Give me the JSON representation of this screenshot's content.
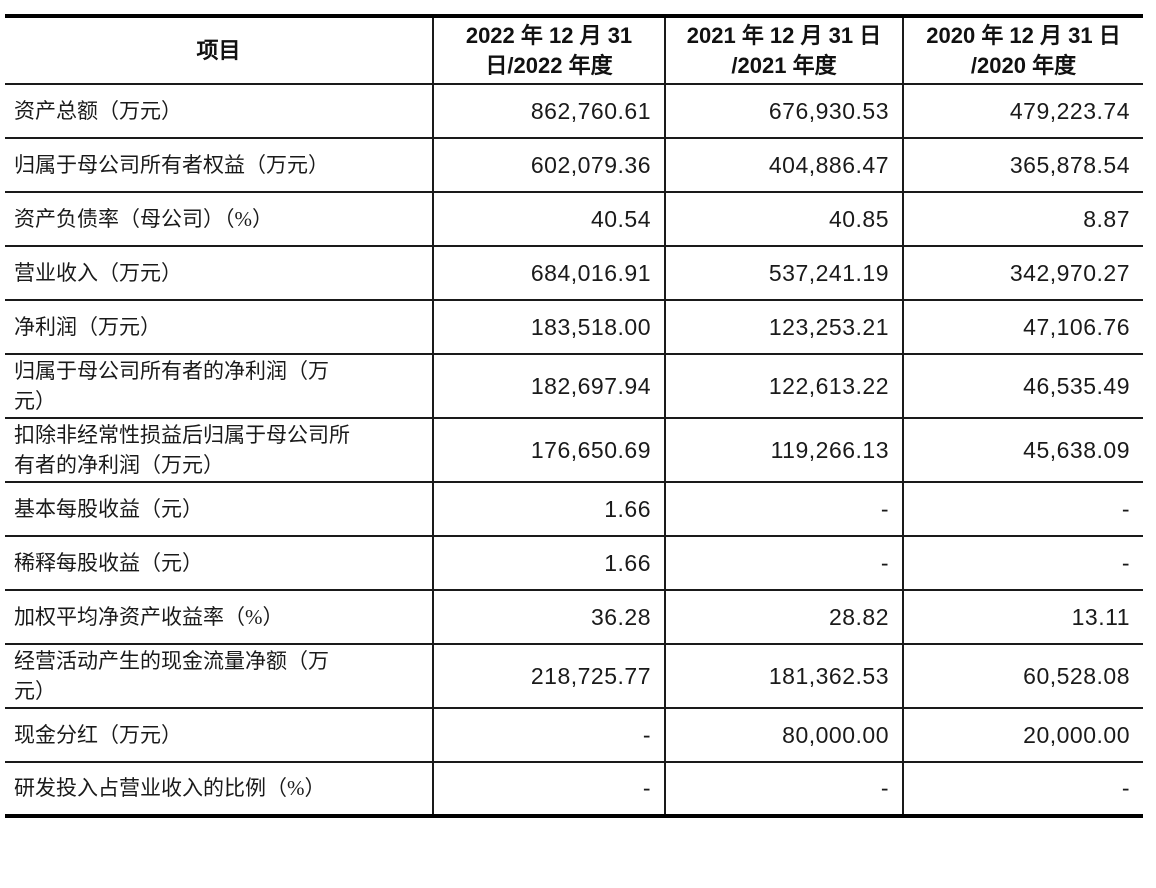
{
  "table": {
    "columns": [
      "项目",
      "2022 年 12 月 31\n日/2022 年度",
      "2021 年 12 月 31 日\n/2021 年度",
      "2020 年 12 月 31 日\n/2020 年度"
    ],
    "rows": [
      {
        "label": "资产总额（万元）",
        "values": [
          "862,760.61",
          "676,930.53",
          "479,223.74"
        ]
      },
      {
        "label": "归属于母公司所有者权益（万元）",
        "values": [
          "602,079.36",
          "404,886.47",
          "365,878.54"
        ]
      },
      {
        "label": "资产负债率（母公司）（%）",
        "values": [
          "40.54",
          "40.85",
          "8.87"
        ]
      },
      {
        "label": "营业收入（万元）",
        "values": [
          "684,016.91",
          "537,241.19",
          "342,970.27"
        ]
      },
      {
        "label": "净利润（万元）",
        "values": [
          "183,518.00",
          "123,253.21",
          "47,106.76"
        ]
      },
      {
        "label": "归属于母公司所有者的净利润（万\n元）",
        "values": [
          "182,697.94",
          "122,613.22",
          "46,535.49"
        ]
      },
      {
        "label": "扣除非经常性损益后归属于母公司所\n有者的净利润（万元）",
        "values": [
          "176,650.69",
          "119,266.13",
          "45,638.09"
        ]
      },
      {
        "label": "基本每股收益（元）",
        "values": [
          "1.66",
          "-",
          "-"
        ]
      },
      {
        "label": "稀释每股收益（元）",
        "values": [
          "1.66",
          "-",
          "-"
        ]
      },
      {
        "label": "加权平均净资产收益率（%）",
        "values": [
          "36.28",
          "28.82",
          "13.11"
        ]
      },
      {
        "label": "经营活动产生的现金流量净额（万\n元）",
        "values": [
          "218,725.77",
          "181,362.53",
          "60,528.08"
        ]
      },
      {
        "label": "现金分红（万元）",
        "values": [
          "-",
          "80,000.00",
          "20,000.00"
        ]
      },
      {
        "label": "研发投入占营业收入的比例（%）",
        "values": [
          "-",
          "-",
          "-"
        ]
      }
    ]
  },
  "colors": {
    "text": "#1a1a1a",
    "border": "#000000",
    "background": "#ffffff"
  }
}
